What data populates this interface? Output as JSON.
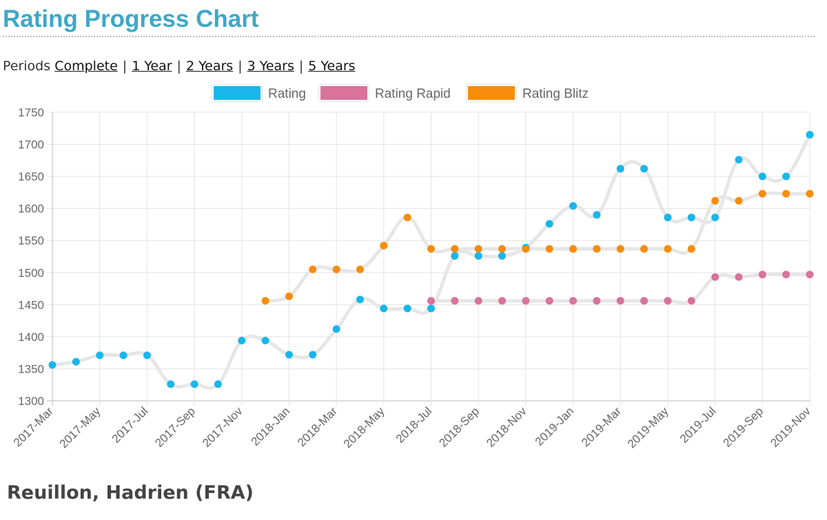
{
  "page": {
    "title": "Rating Progress Chart",
    "player": "Reuillon, Hadrien (FRA)"
  },
  "periods": {
    "label": "Periods",
    "separator": "|",
    "options": [
      "Complete",
      "1 Year",
      "2 Years",
      "3 Years",
      "5 Years"
    ]
  },
  "chart_data": {
    "type": "line",
    "x": [
      "2017-Mar",
      "2017-Apr",
      "2017-May",
      "2017-Jun",
      "2017-Jul",
      "2017-Aug",
      "2017-Sep",
      "2017-Oct",
      "2017-Nov",
      "2017-Dec",
      "2018-Jan",
      "2018-Feb",
      "2018-Mar",
      "2018-Apr",
      "2018-May",
      "2018-Jun",
      "2018-Jul",
      "2018-Aug",
      "2018-Sep",
      "2018-Oct",
      "2018-Nov",
      "2018-Dec",
      "2019-Jan",
      "2019-Feb",
      "2019-Mar",
      "2019-Apr",
      "2019-May",
      "2019-Jun",
      "2019-Jul",
      "2019-Aug",
      "2019-Sep",
      "2019-Oct",
      "2019-Nov"
    ],
    "tick_labels": [
      "2017-Mar",
      "2017-May",
      "2017-Jul",
      "2017-Sep",
      "2017-Nov",
      "2018-Jan",
      "2018-Mar",
      "2018-May",
      "2018-Jul",
      "2018-Sep",
      "2018-Nov",
      "2019-Jan",
      "2019-Mar",
      "2019-May",
      "2019-Jul",
      "2019-Sep",
      "2019-Nov"
    ],
    "series": [
      {
        "name": "Rating",
        "color": "#19b6ec",
        "values": [
          1356,
          1361,
          1371,
          1371,
          1371,
          1326,
          1326,
          1326,
          1394,
          1394,
          1372,
          1372,
          1412,
          1458,
          1444,
          1444,
          1444,
          1526,
          1526,
          1526,
          1539,
          1576,
          1604,
          1590,
          1662,
          1662,
          1586,
          1586,
          1586,
          1676,
          1650,
          1650,
          1715
        ]
      },
      {
        "name": "Rating Rapid",
        "color": "#d9739a",
        "values": [
          null,
          null,
          null,
          null,
          null,
          null,
          null,
          null,
          null,
          null,
          null,
          null,
          null,
          null,
          null,
          null,
          1456,
          1456,
          1456,
          1456,
          1456,
          1456,
          1456,
          1456,
          1456,
          1456,
          1456,
          1456,
          1493,
          1493,
          1497,
          1497,
          1497
        ]
      },
      {
        "name": "Rating Blitz",
        "color": "#f78c0a",
        "values": [
          null,
          null,
          null,
          null,
          null,
          null,
          null,
          null,
          null,
          1456,
          1463,
          1505,
          1505,
          1505,
          1542,
          1586,
          1537,
          1537,
          1537,
          1537,
          1537,
          1537,
          1537,
          1537,
          1537,
          1537,
          1537,
          1537,
          1612,
          1612,
          1623,
          1623,
          1623
        ]
      }
    ],
    "ylim": [
      1300,
      1750
    ],
    "yticks": [
      1300,
      1350,
      1400,
      1450,
      1500,
      1550,
      1600,
      1650,
      1700,
      1750
    ],
    "grid": true,
    "legend_position": "top-center",
    "line_color": "#e6e6e6",
    "xlabel": "",
    "ylabel": ""
  }
}
